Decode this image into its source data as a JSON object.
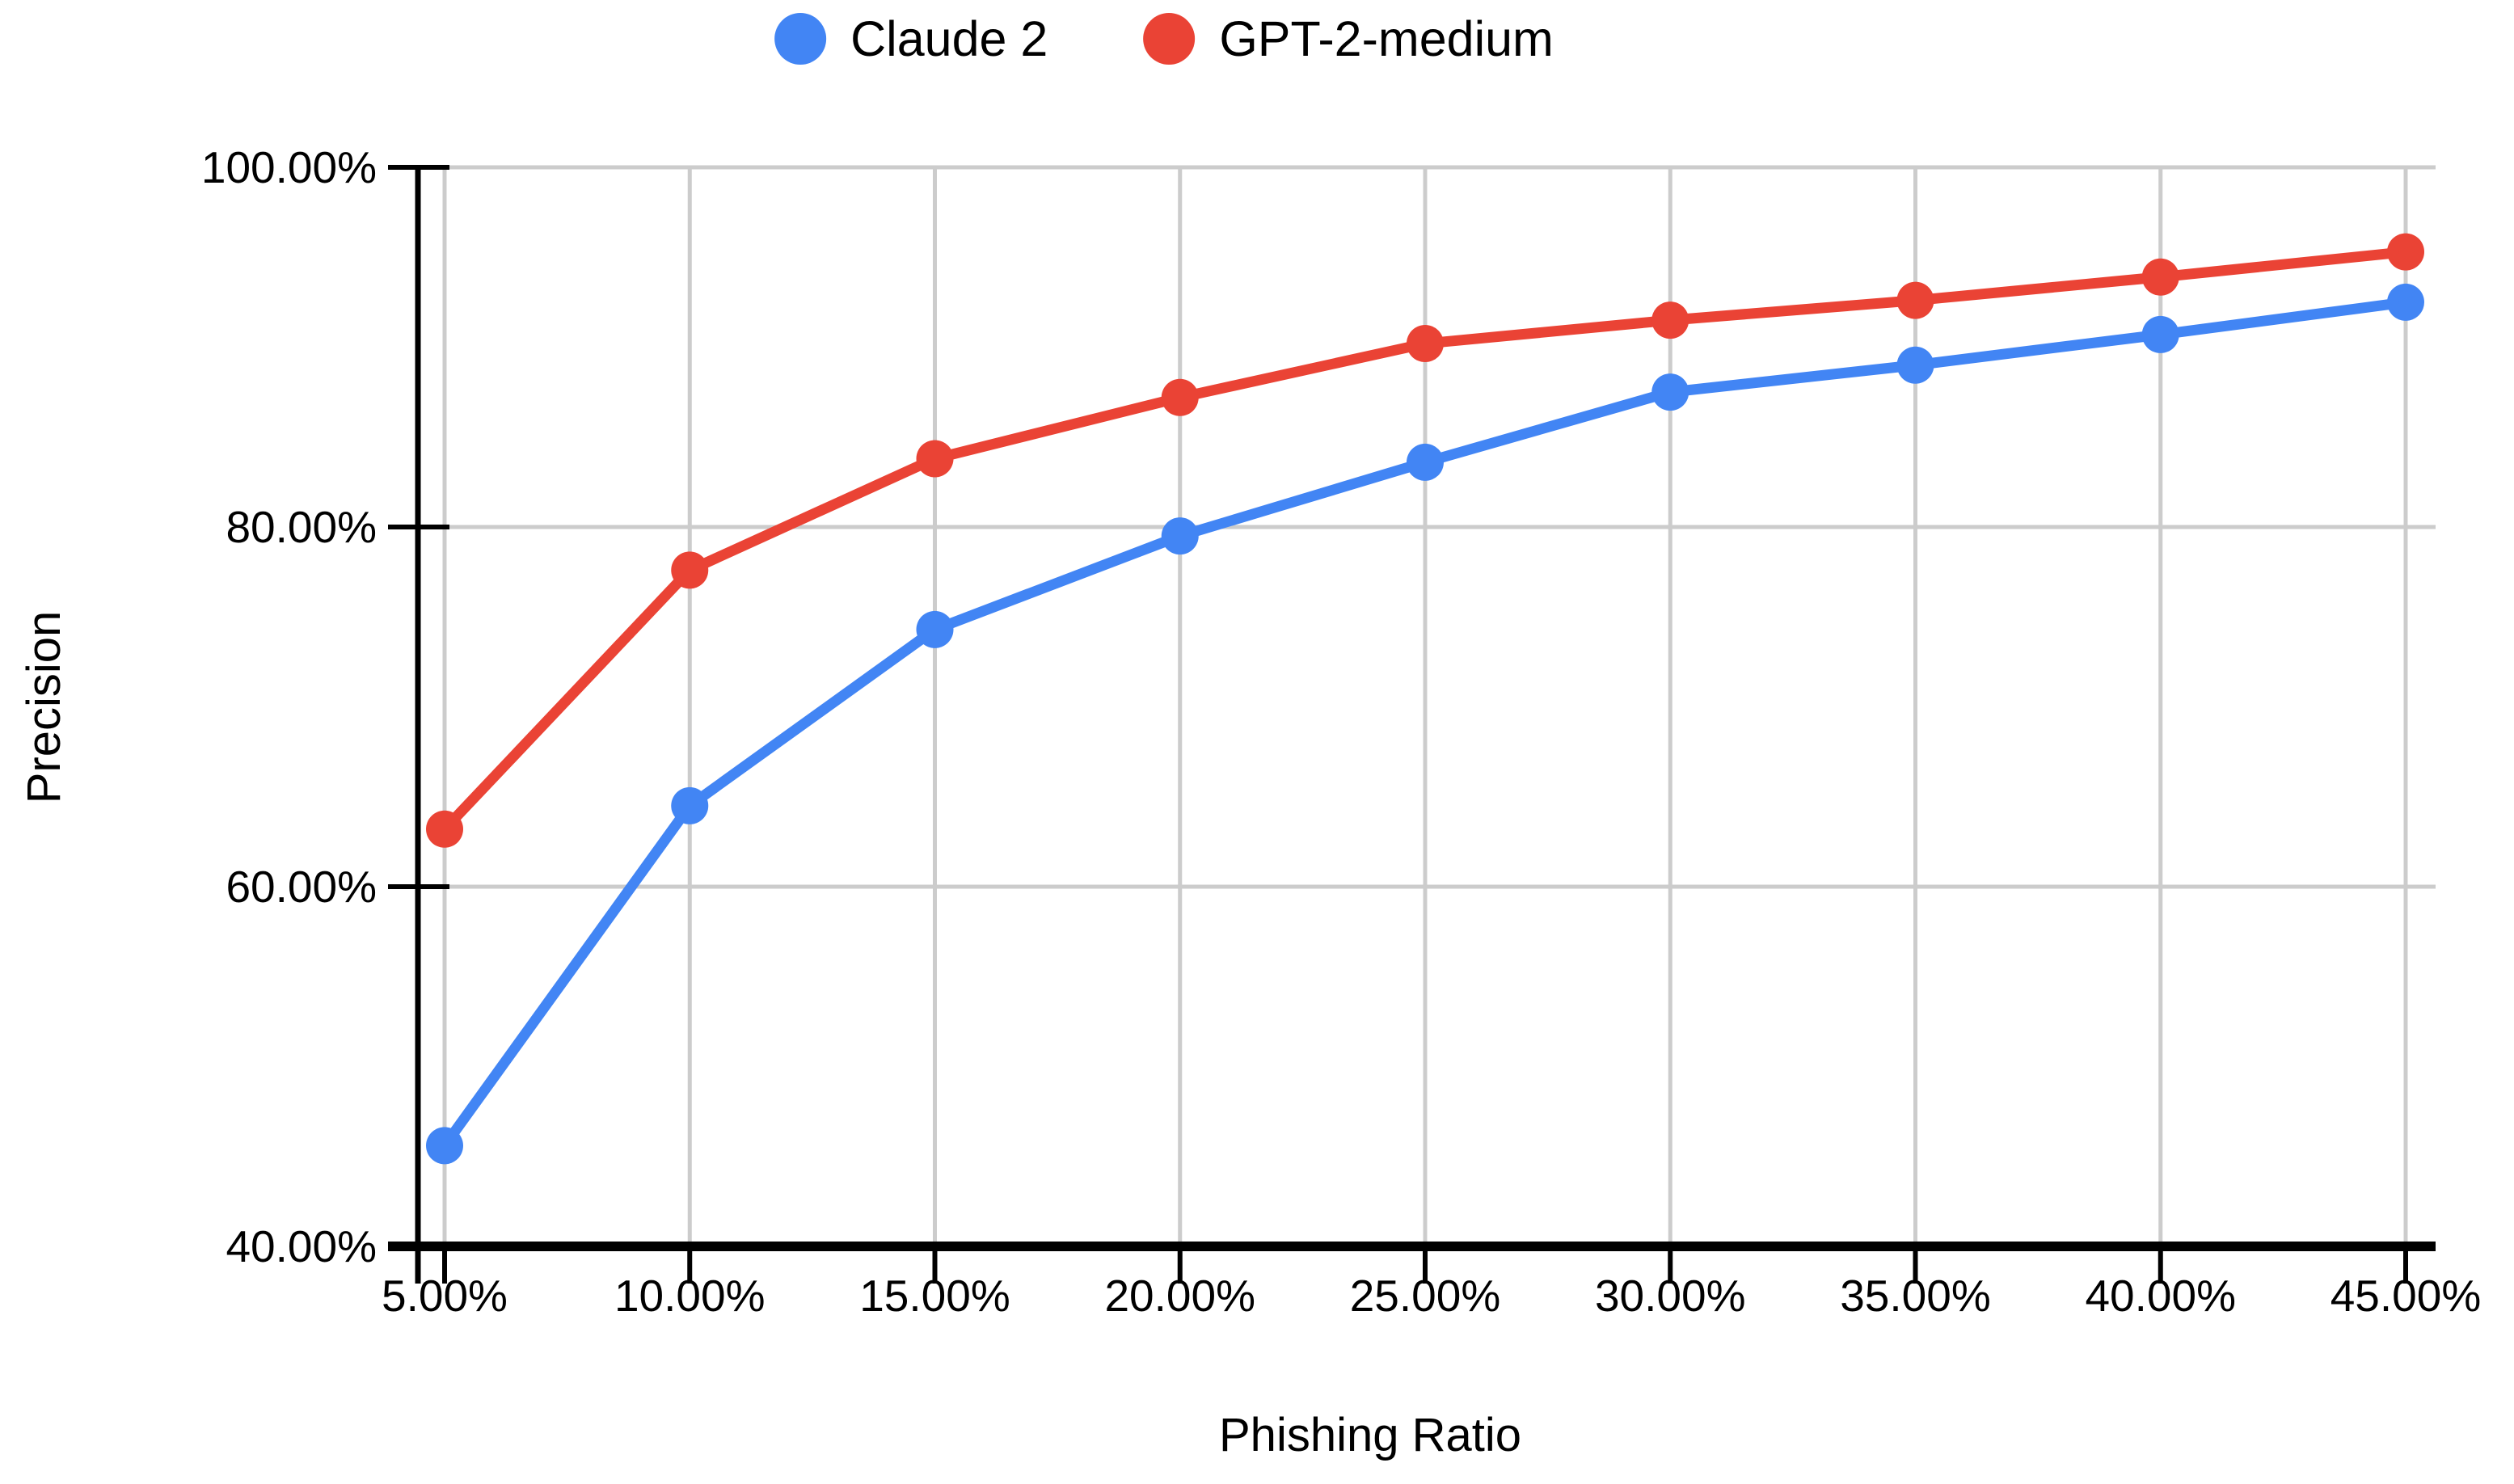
{
  "legend": {
    "items": [
      {
        "label": "Claude 2",
        "color": "#4285F4"
      },
      {
        "label": "GPT-2-medium",
        "color": "#EA4335"
      }
    ]
  },
  "chart_data": {
    "type": "line",
    "title": "",
    "xlabel": "Phishing Ratio",
    "ylabel": "Precision",
    "categories": [
      5,
      10,
      15,
      20,
      25,
      30,
      35,
      40,
      45
    ],
    "x_tick_labels": [
      "5.00%",
      "10.00%",
      "15.00%",
      "20.00%",
      "25.00%",
      "30.00%",
      "35.00%",
      "40.00%",
      "45.00%"
    ],
    "y_ticks": [
      {
        "value": 40,
        "label": "40.00%"
      },
      {
        "value": 60,
        "label": "60.00%"
      },
      {
        "value": 80,
        "label": "80.00%"
      },
      {
        "value": 100,
        "label": "100.00%"
      }
    ],
    "ylim": [
      40,
      100
    ],
    "grid": true,
    "legend_position": "top-center",
    "marker": "circle",
    "series": [
      {
        "name": "Claude 2",
        "color": "#4285F4",
        "values": [
          45.6,
          64.5,
          74.3,
          79.5,
          83.6,
          87.5,
          89.0,
          90.7,
          92.5
        ]
      },
      {
        "name": "GPT-2-medium",
        "color": "#EA4335",
        "values": [
          63.2,
          77.6,
          83.8,
          87.2,
          90.2,
          91.5,
          92.6,
          93.9,
          95.3
        ]
      }
    ]
  },
  "colors": {
    "grid": "#cccccc",
    "axis": "#000000",
    "text": "#000000",
    "background": "#ffffff"
  }
}
